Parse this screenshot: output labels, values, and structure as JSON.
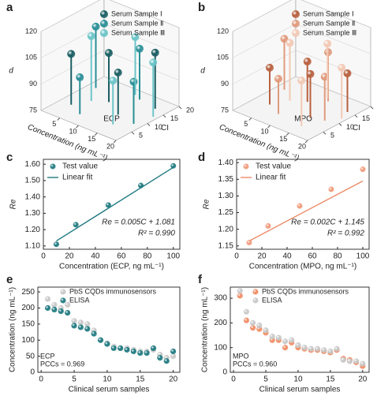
{
  "chart_data": [
    {
      "type": "stem3d",
      "label": "a",
      "zlabel": "d",
      "xlabel": "Concentration (ng mL⁻¹)",
      "ylabel": "CI",
      "annotation": "ECP",
      "xlim": [
        0,
        20
      ],
      "xticks": [
        5,
        10,
        15,
        20
      ],
      "ylim": [
        0,
        20
      ],
      "yticks": [
        5,
        10,
        15,
        20
      ],
      "zlim": [
        75,
        120
      ],
      "zticks": [
        75,
        90,
        105,
        120
      ],
      "legend": "upper right",
      "series": [
        {
          "name": "Serum Sample Ⅰ",
          "color": "#1a5e63",
          "x": [
            3,
            8,
            13,
            17
          ],
          "y": [
            6,
            12,
            9,
            16
          ],
          "values": [
            104,
            103,
            99,
            107
          ]
        },
        {
          "name": "Serum Sample Ⅱ",
          "color": "#2a8f96",
          "x": [
            2,
            7,
            12,
            18
          ],
          "y": [
            15,
            4,
            17,
            8
          ],
          "values": [
            110,
            96,
            104,
            99
          ]
        },
        {
          "name": "Serum Sample Ⅲ",
          "color": "#6cc4c8",
          "x": [
            5,
            10,
            15,
            19
          ],
          "y": [
            10,
            18,
            5,
            13
          ],
          "values": [
            112,
            108,
            100,
            106
          ]
        }
      ]
    },
    {
      "type": "stem3d",
      "label": "b",
      "zlabel": "d",
      "xlabel": "Concentration (ng mL⁻¹)",
      "ylabel": "CI",
      "annotation": "MPO",
      "xlim": [
        0,
        20
      ],
      "xticks": [
        5,
        10,
        15,
        20
      ],
      "ylim": [
        0,
        20
      ],
      "yticks": [
        5,
        10,
        15,
        20
      ],
      "zlim": [
        75,
        120
      ],
      "zticks": [
        75,
        90,
        105,
        120
      ],
      "legend": "upper right",
      "series": [
        {
          "name": "Serum Sample Ⅰ",
          "color": "#b8603f",
          "x": [
            4,
            9,
            14,
            18
          ],
          "y": [
            7,
            13,
            8,
            15
          ],
          "values": [
            96,
            98,
            100,
            97
          ]
        },
        {
          "name": "Serum Sample Ⅱ",
          "color": "#e09a7d",
          "x": [
            2,
            8,
            12,
            17
          ],
          "y": [
            14,
            5,
            16,
            9
          ],
          "values": [
            104,
            95,
            103,
            100
          ]
        },
        {
          "name": "Serum Sample Ⅲ",
          "color": "#f2c9b5",
          "x": [
            6,
            11,
            15,
            19
          ],
          "y": [
            11,
            17,
            4,
            12
          ],
          "values": [
            108,
            106,
            101,
            104
          ]
        }
      ]
    },
    {
      "type": "scatter_fit",
      "label": "c",
      "xlabel": "Concentration (ECP, ng mL⁻¹)",
      "ylabel": "Re",
      "xlim": [
        0,
        105
      ],
      "xticks": [
        0,
        20,
        40,
        60,
        80,
        100
      ],
      "ylim": [
        1.08,
        1.63
      ],
      "yticks": [
        {
          "value": 1.1,
          "label": "1.10"
        },
        {
          "value": 1.2,
          "label": "1.20"
        },
        {
          "value": 1.3,
          "label": "1.30"
        },
        {
          "value": 1.4,
          "label": "1.40"
        },
        {
          "value": 1.5,
          "label": "1.50"
        },
        {
          "value": 1.6,
          "label": "1.60"
        }
      ],
      "legend": "upper left",
      "series": [
        {
          "name": "Test value",
          "color": "#1f7a80",
          "x": [
            10,
            25,
            50,
            75,
            100
          ],
          "values": [
            1.11,
            1.23,
            1.35,
            1.47,
            1.59
          ]
        },
        {
          "name": "Linear fit",
          "color": "#1f7a80",
          "x": [
            10,
            100
          ],
          "values": [
            1.131,
            1.581
          ]
        }
      ],
      "annotations": [
        "Re = 0.005C + 1.081",
        "R² = 0.990"
      ]
    },
    {
      "type": "scatter_fit",
      "label": "d",
      "xlabel": "Concentration (MPO, ng mL⁻¹)",
      "ylabel": "Re",
      "xlim": [
        0,
        105
      ],
      "xticks": [
        0,
        20,
        40,
        60,
        80,
        100
      ],
      "ylim": [
        1.14,
        1.41
      ],
      "yticks": [
        {
          "value": 1.15,
          "label": "1.15"
        },
        {
          "value": 1.2,
          "label": "1.20"
        },
        {
          "value": 1.25,
          "label": "1.25"
        },
        {
          "value": 1.3,
          "label": "1.30"
        },
        {
          "value": 1.35,
          "label": "1.35"
        },
        {
          "value": 1.4,
          "label": "1.40"
        }
      ],
      "legend": "upper left",
      "series": [
        {
          "name": "Test value",
          "color": "#f09a7a",
          "x": [
            10,
            25,
            50,
            75,
            100
          ],
          "values": [
            1.16,
            1.21,
            1.27,
            1.32,
            1.38
          ]
        },
        {
          "name": "Linear fit",
          "color": "#ec8a68",
          "x": [
            10,
            100
          ],
          "values": [
            1.165,
            1.345
          ]
        }
      ],
      "annotations": [
        "Re = 0.002C + 1.145",
        "R² = 0.992"
      ]
    },
    {
      "type": "scatter",
      "label": "e",
      "xlabel": "Clinical serum samples",
      "ylabel": "Concentration (ng mL⁻¹)",
      "xlim": [
        -0.5,
        21
      ],
      "xticks": [
        0,
        5,
        10,
        15,
        20
      ],
      "ylim": [
        0,
        265
      ],
      "yticks": [
        0,
        50,
        100,
        150,
        200,
        250
      ],
      "legend": "upper right",
      "series": [
        {
          "name": "PbS CQDs immunosensors",
          "color": "#c8c8c8",
          "x": [
            1,
            2,
            3,
            4,
            5,
            6,
            7,
            8,
            9,
            10,
            11,
            12,
            13,
            14,
            15,
            16,
            17,
            18,
            19,
            20
          ],
          "values": [
            228,
            210,
            200,
            210,
            160,
            155,
            150,
            130,
            100,
            90,
            80,
            75,
            75,
            70,
            65,
            65,
            70,
            55,
            45,
            50
          ]
        },
        {
          "name": "ELISA",
          "color": "#1f7a80",
          "x": [
            1,
            2,
            3,
            4,
            5,
            6,
            7,
            8,
            9,
            10,
            11,
            12,
            13,
            14,
            15,
            16,
            17,
            18,
            19,
            20
          ],
          "values": [
            200,
            195,
            190,
            185,
            145,
            140,
            135,
            120,
            100,
            88,
            75,
            75,
            70,
            65,
            60,
            60,
            75,
            45,
            35,
            65
          ]
        }
      ],
      "annotations": [
        "ECP",
        "PCCs = 0.969"
      ]
    },
    {
      "type": "scatter",
      "label": "f",
      "xlabel": "Clinical serum samples",
      "ylabel": "Concentration (ng mL⁻¹)",
      "xlim": [
        -0.5,
        21
      ],
      "xticks": [
        0,
        5,
        10,
        15,
        20
      ],
      "ylim": [
        0,
        345
      ],
      "yticks": [
        0,
        100,
        200,
        300
      ],
      "legend": "upper right",
      "series": [
        {
          "name": "PbS CQDs immunosensors",
          "color": "#f08c64",
          "x": [
            1,
            2,
            3,
            4,
            5,
            6,
            7,
            8,
            9,
            10,
            11,
            12,
            13,
            14,
            15,
            16,
            17,
            18,
            19,
            20
          ],
          "values": [
            310,
            210,
            180,
            175,
            160,
            130,
            130,
            100,
            120,
            100,
            95,
            90,
            90,
            85,
            80,
            90,
            55,
            50,
            40,
            25
          ]
        },
        {
          "name": "ELISA",
          "color": "#c8c8c8",
          "x": [
            1,
            2,
            3,
            4,
            5,
            6,
            7,
            8,
            9,
            10,
            11,
            12,
            13,
            14,
            15,
            16,
            17,
            18,
            19,
            20
          ],
          "values": [
            330,
            245,
            200,
            190,
            170,
            145,
            140,
            125,
            130,
            110,
            100,
            95,
            95,
            90,
            85,
            95,
            50,
            45,
            45,
            35
          ]
        }
      ],
      "annotations": [
        "MPO",
        "PCCs = 0.960"
      ]
    }
  ]
}
